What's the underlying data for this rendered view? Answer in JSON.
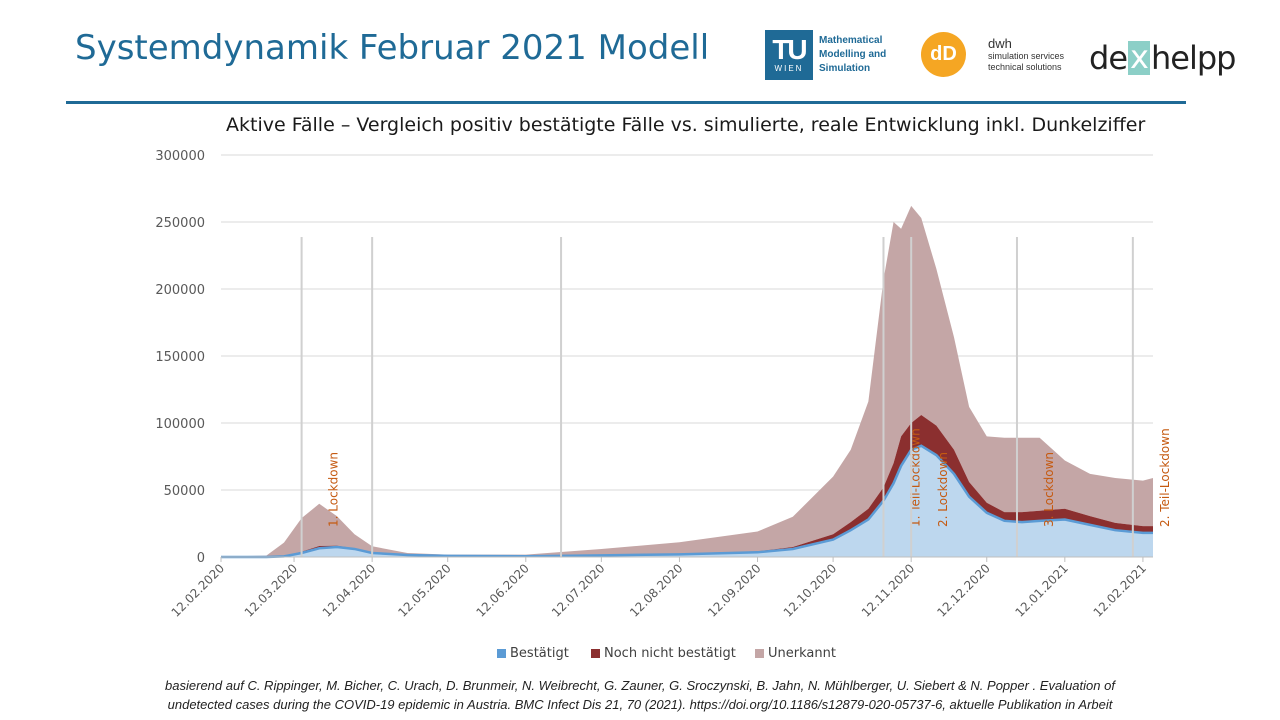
{
  "header": {
    "title": "Systemdynamik Februar 2021 Modell"
  },
  "logos": {
    "tu_big": "TU",
    "tu_small": "WIEN",
    "tu_line1": "Mathematical",
    "tu_line2": "Modelling and",
    "tu_line3": "Simulation",
    "dwh_mark": "dD",
    "dwh_name": "dwh",
    "dwh_line1": "simulation services",
    "dwh_line2": "technical solutions",
    "dex_left": "de",
    "dex_x": "x",
    "dex_right": "helpp"
  },
  "colors": {
    "title_blue": "#1f6a96",
    "bestaetigt": "#bdd7ee",
    "bestaetigt_line": "#5b9bd5",
    "noch_nicht": "#8b2f2f",
    "unerkannt": "#c4a6a6",
    "event_line": "#d0d0d0",
    "event_label": "#c55a11"
  },
  "chart_data": {
    "type": "area",
    "title": "Aktive Fälle – Vergleich positiv bestätigte Fälle vs. simulierte, reale Entwicklung inkl. Dunkelziffer",
    "ylim": [
      0,
      300000
    ],
    "yticks": [
      0,
      50000,
      100000,
      150000,
      200000,
      250000,
      300000
    ],
    "xticks": [
      "12.02.2020",
      "12.03.2020",
      "12.04.2020",
      "12.05.2020",
      "12.06.2020",
      "12.07.2020",
      "12.08.2020",
      "12.09.2020",
      "12.10.2020",
      "12.11.2020",
      "12.12.2020",
      "12.01.2021",
      "12.02.2021"
    ],
    "stacked": true,
    "x": [
      "12.02.2020",
      "01.03.2020",
      "08.03.2020",
      "15.03.2020",
      "22.03.2020",
      "29.03.2020",
      "05.04.2020",
      "12.04.2020",
      "26.04.2020",
      "12.05.2020",
      "12.06.2020",
      "12.07.2020",
      "12.08.2020",
      "12.09.2020",
      "26.09.2020",
      "12.10.2020",
      "19.10.2020",
      "26.10.2020",
      "01.11.2020",
      "05.11.2020",
      "08.11.2020",
      "12.11.2020",
      "16.11.2020",
      "22.11.2020",
      "29.11.2020",
      "05.12.2020",
      "12.12.2020",
      "19.12.2020",
      "26.12.2020",
      "02.01.2021",
      "12.01.2021",
      "22.01.2021",
      "01.02.2021",
      "12.02.2021",
      "16.02.2021"
    ],
    "series": [
      {
        "name": "Bestätigt",
        "values": [
          0,
          0,
          500,
          3000,
          6500,
          7500,
          6000,
          3000,
          1500,
          800,
          600,
          1200,
          2000,
          3500,
          6000,
          13000,
          20000,
          28000,
          42000,
          55000,
          68000,
          80000,
          83000,
          76000,
          62000,
          45000,
          33000,
          27000,
          26000,
          27000,
          28000,
          24000,
          20000,
          18000,
          18000
        ]
      },
      {
        "name": "Noch nicht bestätigt",
        "values": [
          0,
          0,
          200,
          1000,
          1700,
          1000,
          500,
          400,
          300,
          200,
          200,
          400,
          600,
          800,
          1500,
          4000,
          6000,
          8000,
          10000,
          15000,
          22000,
          20000,
          23000,
          22000,
          18000,
          11000,
          7500,
          6500,
          7500,
          7500,
          8000,
          6500,
          5500,
          5000,
          5000
        ]
      },
      {
        "name": "Unerkannt",
        "values": [
          500,
          1000,
          10000,
          25000,
          31500,
          22000,
          10500,
          4600,
          1200,
          800,
          1000,
          4400,
          8400,
          14700,
          22500,
          43000,
          54000,
          80000,
          155000,
          180000,
          155000,
          162000,
          147000,
          117000,
          84000,
          56000,
          49500,
          55500,
          55500,
          54500,
          36000,
          31500,
          33500,
          34000,
          36000
        ]
      }
    ],
    "events": [
      {
        "date": "15.03.2020",
        "label": "1. Lockdown"
      },
      {
        "date": "12.04.2020",
        "label": ""
      },
      {
        "date": "26.06.2020",
        "label": ""
      },
      {
        "date": "01.11.2020",
        "label": "1. Teil-Lockdown"
      },
      {
        "date": "12.11.2020",
        "label": "2. Lockdown"
      },
      {
        "date": "24.12.2020",
        "label": "3. Lockdown"
      },
      {
        "date": "08.02.2021",
        "label": "2. Teil-Lockdown"
      }
    ],
    "legend": [
      "Bestätigt",
      "Noch nicht bestätigt",
      "Unerkannt"
    ],
    "legend_position": "bottom",
    "grid": true
  },
  "footer": {
    "line1": "basierend auf C. Rippinger, M. Bicher, C. Urach, D. Brunmeir, N. Weibrecht, G. Zauner, G. Sroczynski, B. Jahn, N. Mühlberger, U. Siebert & N. Popper . Evaluation of",
    "line2": "undetected cases during the COVID-19 epidemic in Austria. BMC Infect Dis 21, 70 (2021). https://doi.org/10.1186/s12879-020-05737-6,  aktuelle Publikation in Arbeit"
  }
}
